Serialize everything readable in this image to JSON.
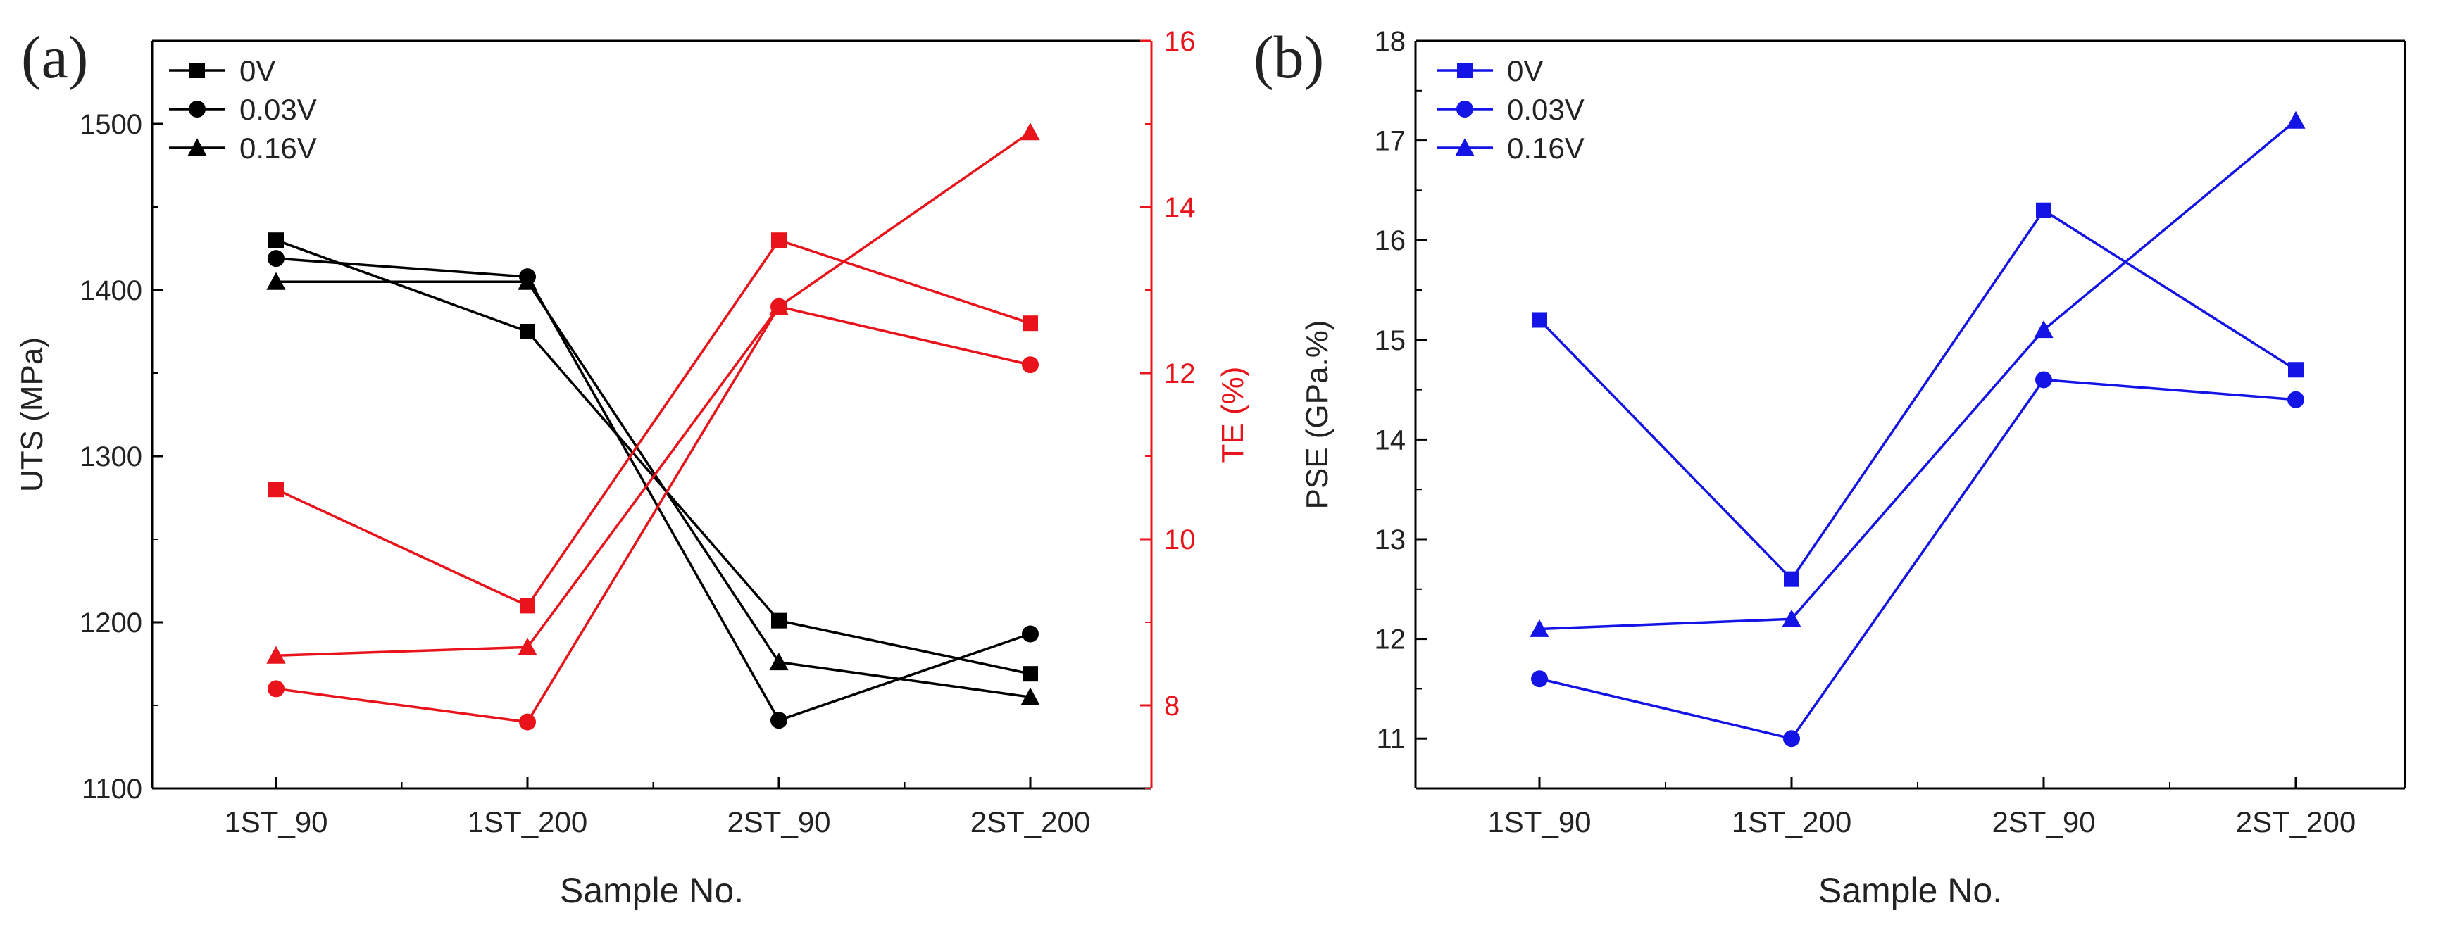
{
  "chart_data": [
    {
      "panel": "(a)",
      "type": "line",
      "xlabel": "Sample No.",
      "ylabel": "UTS (MPa)",
      "y2label": "TE (%)",
      "categories": [
        "1ST_90",
        "1ST_200",
        "2ST_90",
        "2ST_200"
      ],
      "ylim": [
        1100,
        1550
      ],
      "yticks": [
        1100,
        1200,
        1300,
        1400,
        1500
      ],
      "y2lim": [
        7,
        16
      ],
      "y2ticks": [
        8,
        10,
        12,
        14,
        16
      ],
      "legend_position": "top-left",
      "series": [
        {
          "name": "0V",
          "marker": "square",
          "color": "#000000",
          "axis": "left",
          "values": [
            1430,
            1375,
            1201,
            1169
          ]
        },
        {
          "name": "0.03V",
          "marker": "circle",
          "color": "#000000",
          "axis": "left",
          "values": [
            1419,
            1408,
            1141,
            1193
          ]
        },
        {
          "name": "0.16V",
          "marker": "triangle",
          "color": "#000000",
          "axis": "left",
          "values": [
            1405,
            1405,
            1176,
            1155
          ]
        },
        {
          "name": "0V",
          "marker": "square",
          "color": "#e8131b",
          "axis": "right",
          "values": [
            10.6,
            9.2,
            13.6,
            12.6
          ]
        },
        {
          "name": "0.03V",
          "marker": "circle",
          "color": "#e8131b",
          "axis": "right",
          "values": [
            8.2,
            7.8,
            12.8,
            12.1
          ]
        },
        {
          "name": "0.16V",
          "marker": "triangle",
          "color": "#e8131b",
          "axis": "right",
          "values": [
            8.6,
            8.7,
            12.8,
            14.9
          ]
        }
      ]
    },
    {
      "panel": "(b)",
      "type": "line",
      "xlabel": "Sample No.",
      "ylabel": "PSE (GPa.%)",
      "categories": [
        "1ST_90",
        "1ST_200",
        "2ST_90",
        "2ST_200"
      ],
      "ylim": [
        10.5,
        18
      ],
      "yticks": [
        11,
        12,
        13,
        14,
        15,
        16,
        17,
        18
      ],
      "legend_position": "top-left",
      "series": [
        {
          "name": "0V",
          "marker": "square",
          "color": "#1414e6",
          "axis": "left",
          "values": [
            15.2,
            12.6,
            16.3,
            14.7
          ]
        },
        {
          "name": "0.03V",
          "marker": "circle",
          "color": "#1414e6",
          "axis": "left",
          "values": [
            11.6,
            11.0,
            14.6,
            14.4
          ]
        },
        {
          "name": "0.16V",
          "marker": "triangle",
          "color": "#1414e6",
          "axis": "left",
          "values": [
            12.1,
            12.2,
            15.1,
            17.2
          ]
        }
      ]
    }
  ]
}
